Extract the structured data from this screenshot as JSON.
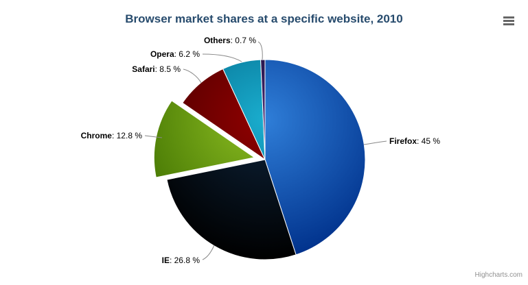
{
  "chart_data": {
    "type": "pie",
    "title": "Browser market shares at a specific website, 2010",
    "label_format": "<name>: <value> %",
    "legend": "none",
    "start_angle_deg": 0,
    "direction": "clockwise",
    "slices": [
      {
        "name": "Firefox",
        "value": 45,
        "display": "45 %",
        "color": "#2f7ed8",
        "color_edge": "#00318b",
        "sliced": false
      },
      {
        "name": "IE",
        "value": 26.8,
        "display": "26.8 %",
        "color": "#0d233a",
        "color_edge": "#000000",
        "sliced": false
      },
      {
        "name": "Chrome",
        "value": 12.8,
        "display": "12.8 %",
        "color": "#8bbc21",
        "color_edge": "#3e6f00",
        "sliced": true
      },
      {
        "name": "Safari",
        "value": 8.5,
        "display": "8.5 %",
        "color": "#910000",
        "color_edge": "#440000",
        "sliced": false
      },
      {
        "name": "Opera",
        "value": 6.2,
        "display": "6.2 %",
        "color": "#1aadce",
        "color_edge": "#006081",
        "sliced": false
      },
      {
        "name": "Others",
        "value": 0.7,
        "display": "0.7 %",
        "color": "#492970",
        "color_edge": "#000023",
        "sliced": false
      }
    ]
  },
  "credits": {
    "text": "Highcharts.com"
  },
  "export_menu": {
    "icon": "hamburger-icon"
  },
  "theme": {
    "background": "#ffffff",
    "title_color": "#274b6d",
    "label_color": "#000000",
    "connector_color": "#888888",
    "credits_color": "#909090",
    "menu_icon_color": "#666666",
    "slice_border_color": "#ffffff"
  }
}
